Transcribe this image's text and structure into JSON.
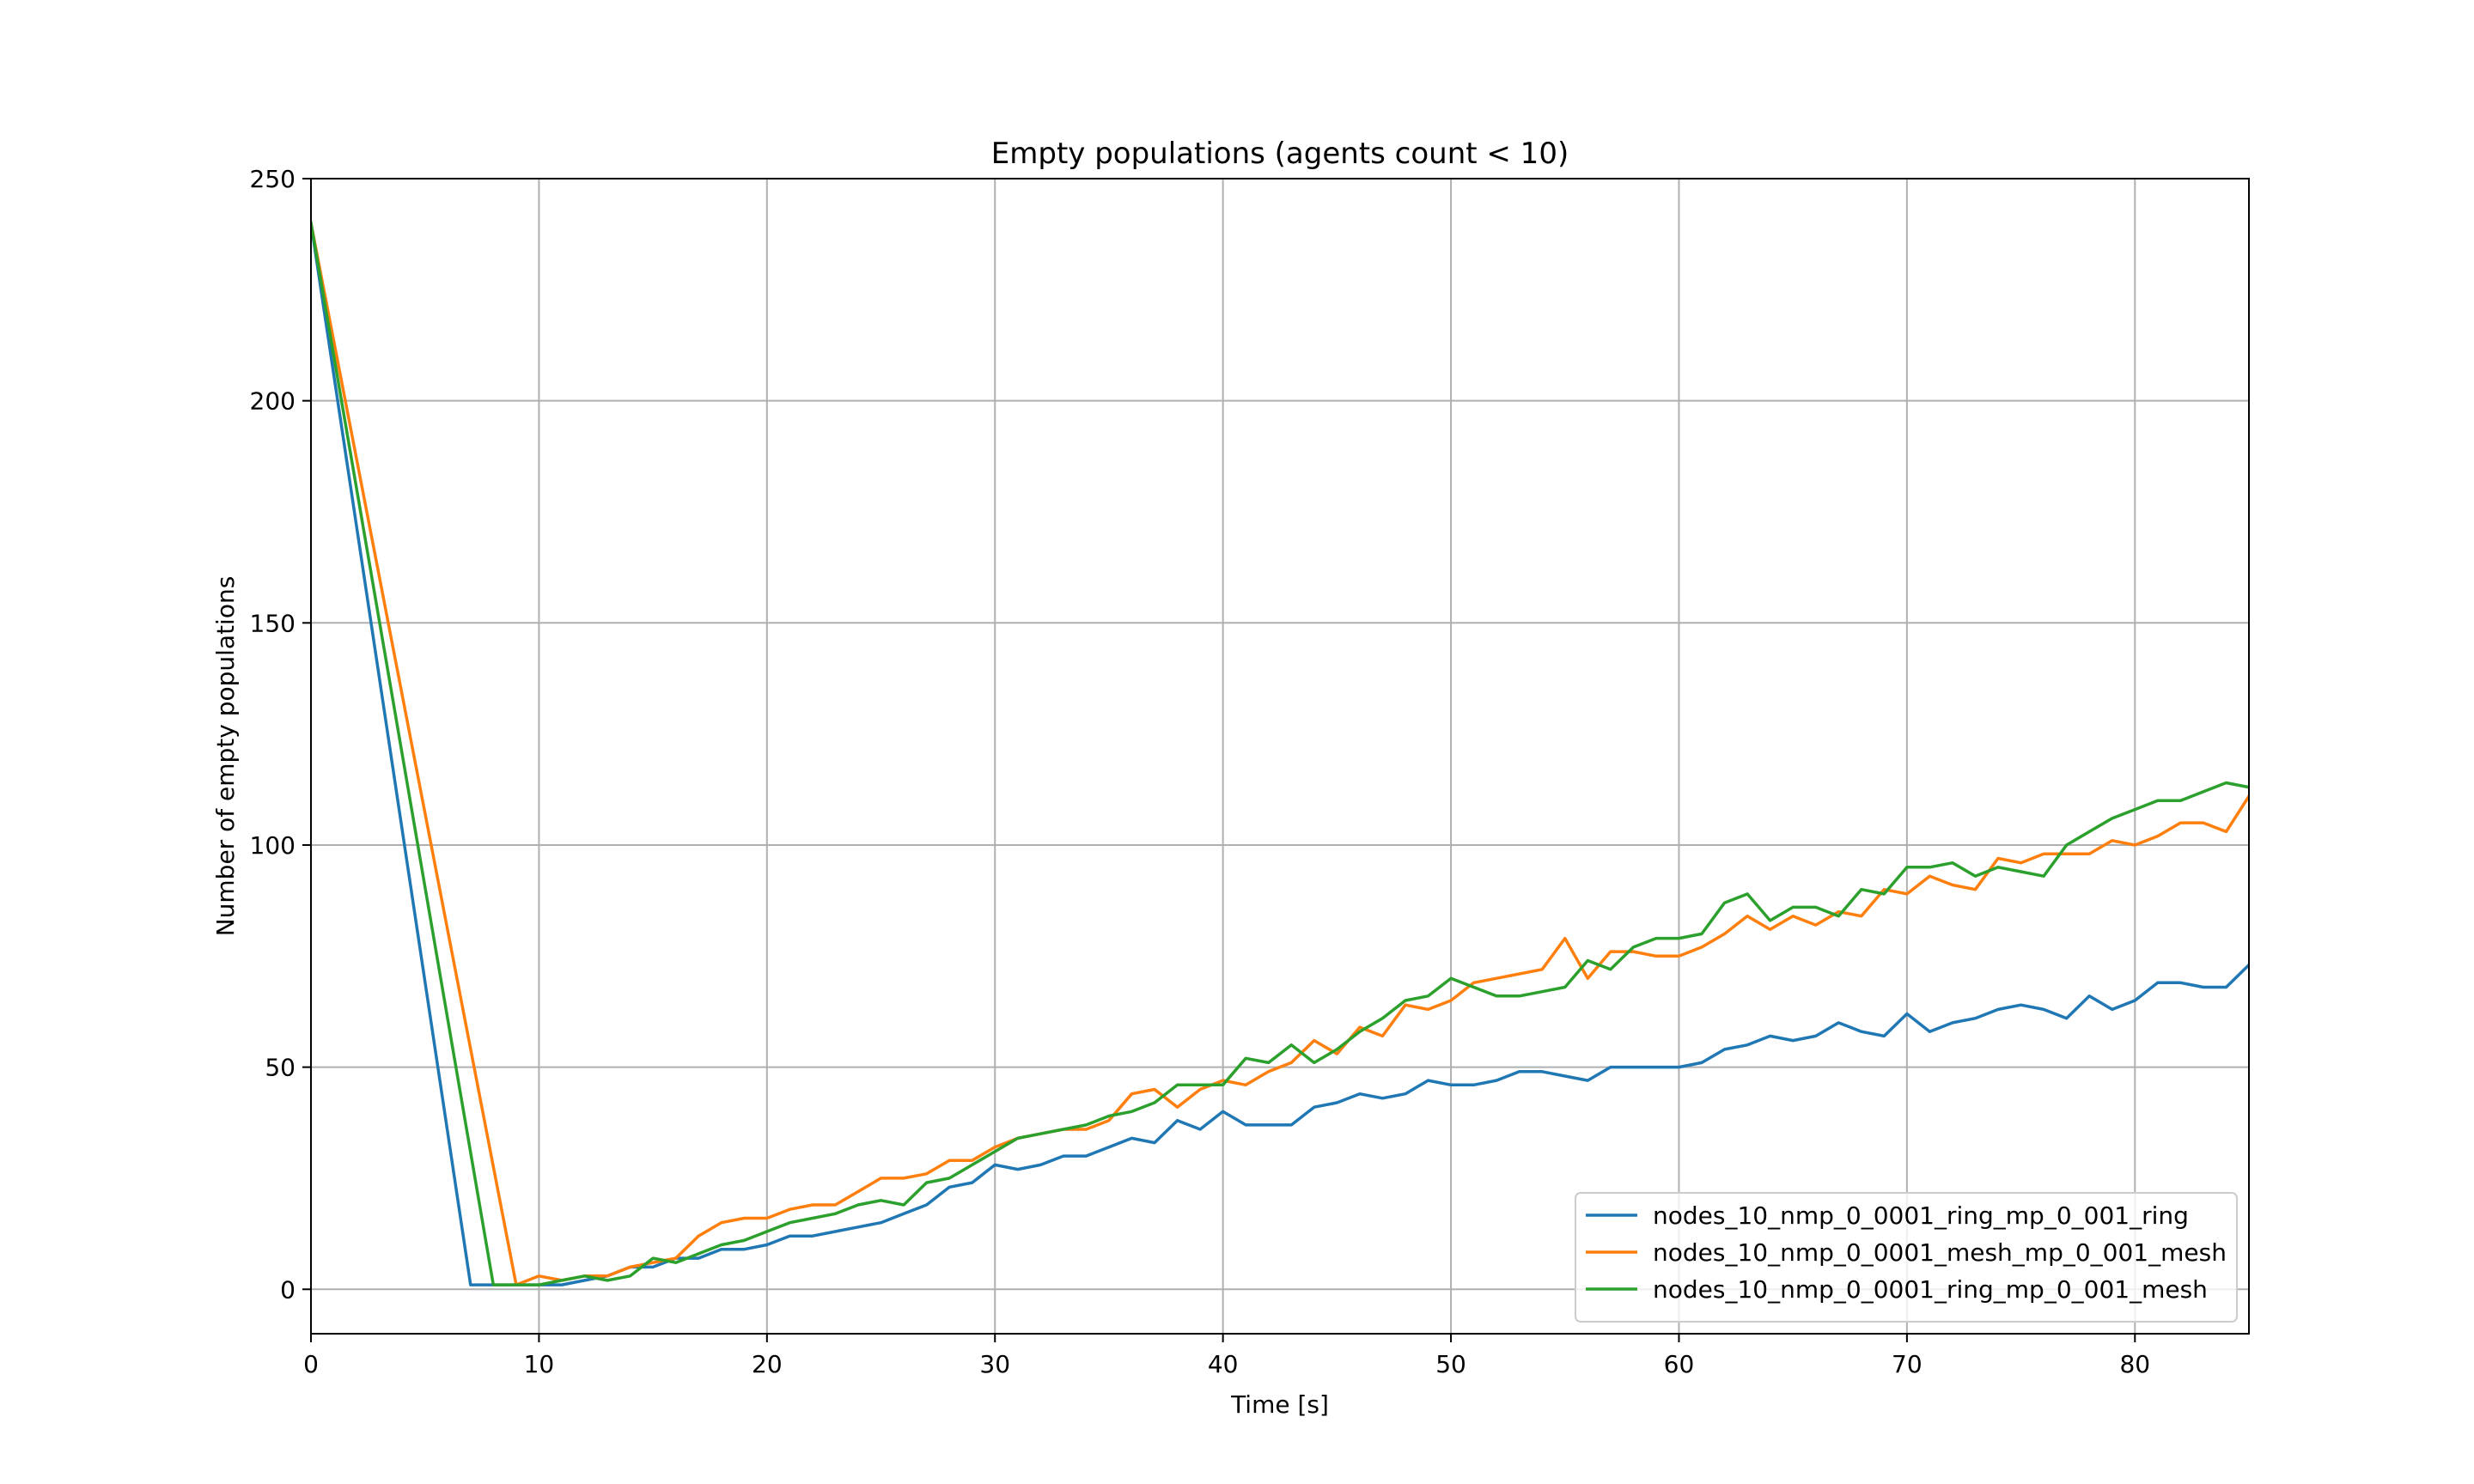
{
  "chart_data": {
    "type": "line",
    "title": "Empty populations (agents count < 10)",
    "xlabel": "Time [s]",
    "ylabel": "Number of empty populations",
    "xlim": [
      0,
      85
    ],
    "ylim": [
      -10,
      250
    ],
    "xticks": [
      0,
      10,
      20,
      30,
      40,
      50,
      60,
      70,
      80
    ],
    "yticks": [
      0,
      50,
      100,
      150,
      200,
      250
    ],
    "grid": true,
    "legend_position": "lower-right",
    "series": [
      {
        "name": "nodes_10_nmp_0_0001_ring_mp_0_001_ring",
        "color": "#1f77b4",
        "x": [
          0,
          7,
          8,
          9,
          10,
          11,
          12,
          13,
          14,
          15,
          16,
          17,
          18,
          19,
          20,
          21,
          22,
          23,
          24,
          25,
          26,
          27,
          28,
          29,
          30,
          31,
          32,
          33,
          34,
          35,
          36,
          37,
          38,
          39,
          40,
          41,
          42,
          43,
          44,
          45,
          46,
          47,
          48,
          49,
          50,
          51,
          52,
          53,
          54,
          55,
          56,
          57,
          58,
          59,
          60,
          61,
          62,
          63,
          64,
          65,
          66,
          67,
          68,
          69,
          70,
          71,
          72,
          73,
          74,
          75,
          76,
          77,
          78,
          79,
          80,
          81,
          82,
          83,
          84,
          85
        ],
        "y": [
          240,
          1,
          1,
          1,
          1,
          1,
          2,
          3,
          5,
          5,
          7,
          7,
          9,
          9,
          10,
          12,
          12,
          13,
          14,
          15,
          17,
          19,
          23,
          24,
          28,
          27,
          28,
          30,
          30,
          32,
          34,
          33,
          38,
          36,
          40,
          37,
          37,
          37,
          41,
          42,
          44,
          43,
          44,
          47,
          46,
          46,
          47,
          49,
          49,
          48,
          47,
          50,
          50,
          50,
          50,
          51,
          54,
          55,
          57,
          56,
          57,
          60,
          58,
          57,
          62,
          58,
          60,
          61,
          63,
          64,
          63,
          61,
          66,
          63,
          65,
          69,
          69,
          68,
          68,
          73
        ]
      },
      {
        "name": "nodes_10_nmp_0_0001_mesh_mp_0_001_mesh",
        "color": "#ff7f0e",
        "x": [
          0,
          9,
          10,
          11,
          12,
          13,
          14,
          15,
          16,
          17,
          18,
          19,
          20,
          21,
          22,
          23,
          24,
          25,
          26,
          27,
          28,
          29,
          30,
          31,
          32,
          33,
          34,
          35,
          36,
          37,
          38,
          39,
          40,
          41,
          42,
          43,
          44,
          45,
          46,
          47,
          48,
          49,
          50,
          51,
          52,
          53,
          54,
          55,
          56,
          57,
          58,
          59,
          60,
          61,
          62,
          63,
          64,
          65,
          66,
          67,
          68,
          69,
          70,
          71,
          72,
          73,
          74,
          75,
          76,
          77,
          78,
          79,
          80,
          81,
          82,
          83,
          84,
          85
        ],
        "y": [
          240,
          1,
          3,
          2,
          3,
          3,
          5,
          6,
          7,
          12,
          15,
          16,
          16,
          18,
          19,
          19,
          22,
          25,
          25,
          26,
          29,
          29,
          32,
          34,
          35,
          36,
          36,
          38,
          44,
          45,
          41,
          45,
          47,
          46,
          49,
          51,
          56,
          53,
          59,
          57,
          64,
          63,
          65,
          69,
          70,
          71,
          72,
          79,
          70,
          76,
          76,
          75,
          75,
          77,
          80,
          84,
          81,
          84,
          82,
          85,
          84,
          90,
          89,
          93,
          91,
          90,
          97,
          96,
          98,
          98,
          98,
          101,
          100,
          102,
          105,
          105,
          103,
          111
        ]
      },
      {
        "name": "nodes_10_nmp_0_0001_ring_mp_0_001_mesh",
        "color": "#2ca02c",
        "x": [
          0,
          8,
          9,
          10,
          11,
          12,
          13,
          14,
          15,
          16,
          17,
          18,
          19,
          20,
          21,
          22,
          23,
          24,
          25,
          26,
          27,
          28,
          29,
          30,
          31,
          32,
          33,
          34,
          35,
          36,
          37,
          38,
          39,
          40,
          41,
          42,
          43,
          44,
          45,
          46,
          47,
          48,
          49,
          50,
          51,
          52,
          53,
          54,
          55,
          56,
          57,
          58,
          59,
          60,
          61,
          62,
          63,
          64,
          65,
          66,
          67,
          68,
          69,
          70,
          71,
          72,
          73,
          74,
          75,
          76,
          77,
          78,
          79,
          80,
          81,
          82,
          83,
          84,
          85
        ],
        "y": [
          240,
          1,
          1,
          1,
          2,
          3,
          2,
          3,
          7,
          6,
          8,
          10,
          11,
          13,
          15,
          16,
          17,
          19,
          20,
          19,
          24,
          25,
          28,
          31,
          34,
          35,
          36,
          37,
          39,
          40,
          42,
          46,
          46,
          46,
          52,
          51,
          55,
          51,
          54,
          58,
          61,
          65,
          66,
          70,
          68,
          66,
          66,
          67,
          68,
          74,
          72,
          77,
          79,
          79,
          80,
          87,
          89,
          83,
          86,
          86,
          84,
          90,
          89,
          95,
          95,
          96,
          93,
          95,
          94,
          93,
          100,
          103,
          106,
          108,
          110,
          110,
          112,
          114,
          113
        ]
      }
    ]
  }
}
